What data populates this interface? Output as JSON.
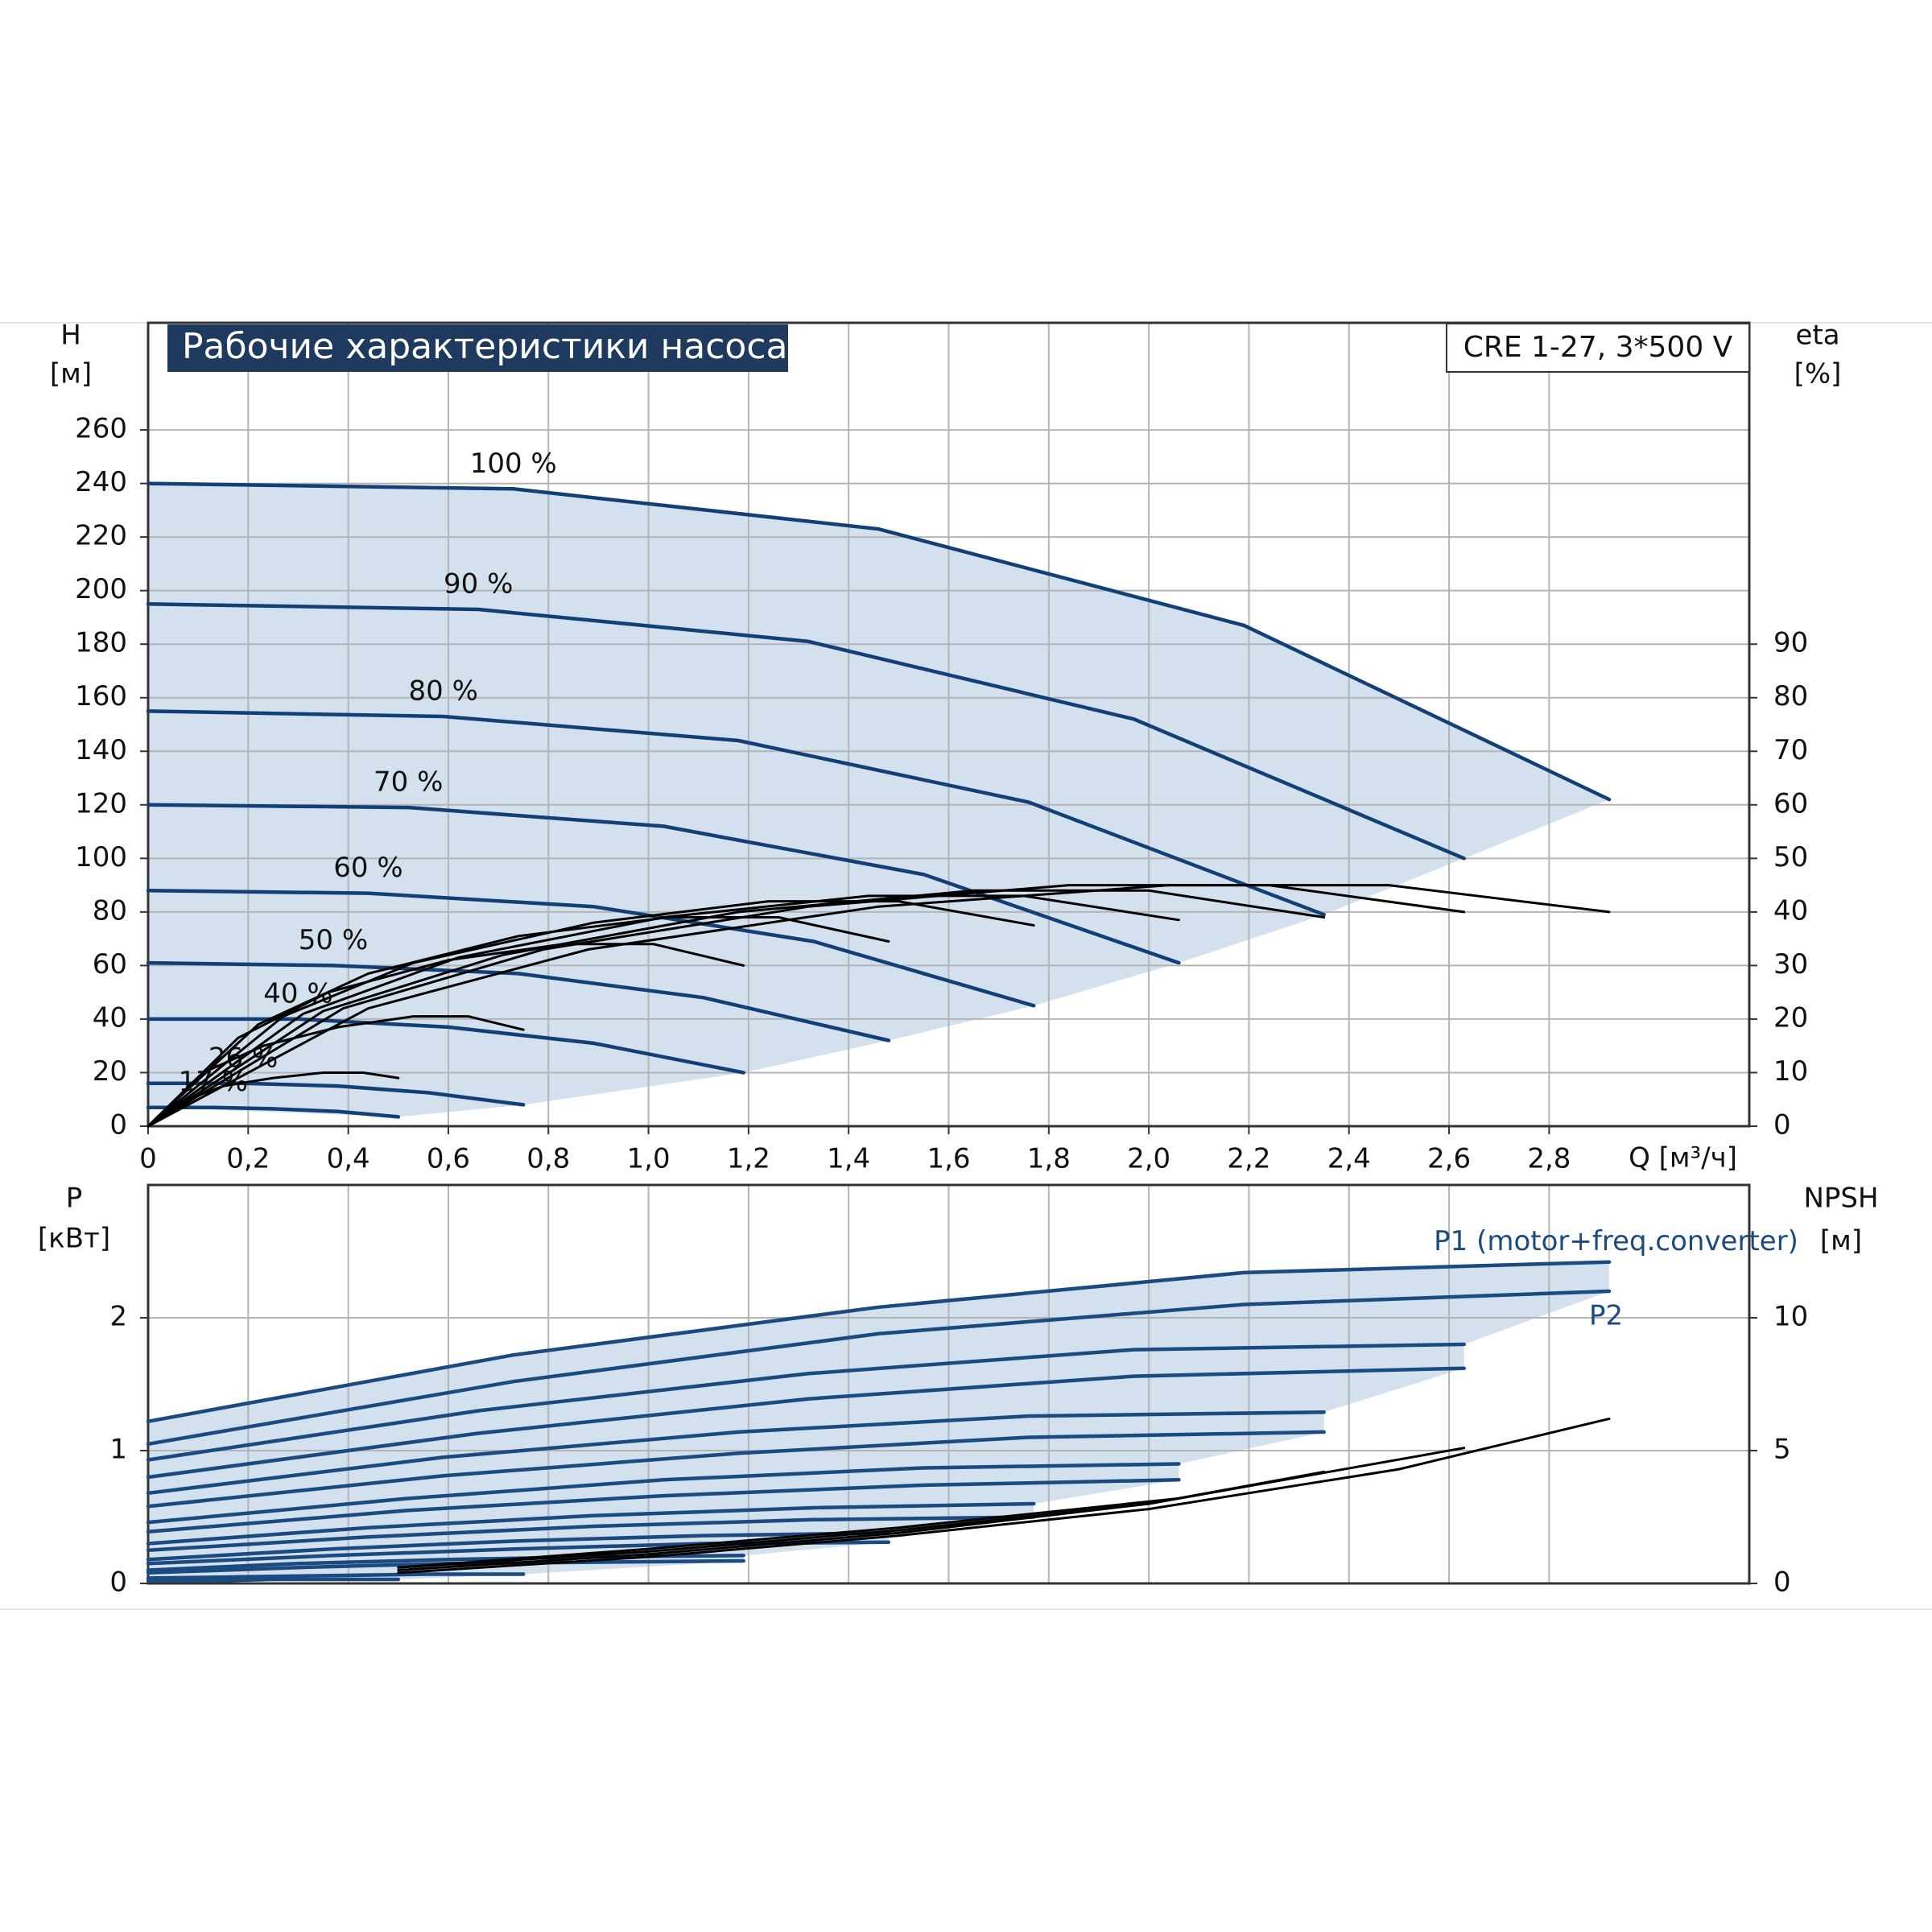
{
  "chart_data": [
    {
      "type": "line",
      "title": "Рабочие характеристики насоса",
      "subtitle": "CRE 1-27, 3*500 V",
      "ylabel": "H",
      "yunit": "[м]",
      "y2label": "eta",
      "y2unit": "[%]",
      "xlabel": "Q [м³/ч]",
      "xlim": [
        0,
        3.2
      ],
      "ylim": [
        0,
        300
      ],
      "y2lim": [
        0,
        150
      ],
      "grid": true,
      "xticks": [
        0,
        {
          "value": 0.2,
          "label": "0,2"
        },
        {
          "value": 0.4,
          "label": "0,4"
        },
        {
          "value": 0.6,
          "label": "0,6"
        },
        {
          "value": 0.8,
          "label": "0,8"
        },
        {
          "value": 1,
          "label": "1,0"
        },
        {
          "value": 1.2,
          "label": "1,2"
        },
        {
          "value": 1.4,
          "label": "1,4"
        },
        {
          "value": 1.6,
          "label": "1,6"
        },
        {
          "value": 1.8,
          "label": "1,8"
        },
        {
          "value": 2,
          "label": "2,0"
        },
        {
          "value": 2.2,
          "label": "2,2"
        },
        {
          "value": 2.4,
          "label": "2,4"
        },
        {
          "value": 2.6,
          "label": "2,6"
        },
        {
          "value": 2.8,
          "label": "2,8"
        }
      ],
      "yticks": [
        0,
        20,
        40,
        60,
        80,
        100,
        120,
        140,
        160,
        180,
        200,
        220,
        240,
        260
      ],
      "y2ticks": [
        0,
        10,
        20,
        30,
        40,
        50,
        60,
        70,
        80,
        90
      ],
      "series": [
        {
          "name": "100 %",
          "color": "#123f75",
          "x": [
            0,
            0.73,
            1.46,
            2.19,
            2.92
          ],
          "values": [
            240,
            238,
            223,
            187,
            122
          ]
        },
        {
          "name": "90 %",
          "color": "#123f75",
          "x": [
            0,
            0.66,
            1.32,
            1.97,
            2.63
          ],
          "values": [
            195,
            193,
            181,
            152,
            100
          ]
        },
        {
          "name": "80 %",
          "color": "#123f75",
          "x": [
            0,
            0.59,
            1.18,
            1.76,
            2.35
          ],
          "values": [
            155,
            153,
            144,
            121,
            79
          ]
        },
        {
          "name": "70 %",
          "color": "#123f75",
          "x": [
            0,
            0.52,
            1.03,
            1.55,
            2.06
          ],
          "values": [
            120,
            119,
            112,
            94,
            61
          ]
        },
        {
          "name": "60 %",
          "color": "#123f75",
          "x": [
            0,
            0.44,
            0.89,
            1.33,
            1.77
          ],
          "values": [
            88,
            87,
            82,
            69,
            45
          ]
        },
        {
          "name": "50 %",
          "color": "#123f75",
          "x": [
            0,
            0.37,
            0.74,
            1.11,
            1.48
          ],
          "values": [
            61,
            60,
            57,
            48,
            32
          ]
        },
        {
          "name": "40 %",
          "color": "#123f75",
          "x": [
            0,
            0.3,
            0.6,
            0.89,
            1.19
          ],
          "values": [
            40,
            40,
            37,
            31,
            20
          ]
        },
        {
          "name": "26 %",
          "color": "#123f75",
          "x": [
            0,
            0.19,
            0.38,
            0.56,
            0.75
          ],
          "values": [
            16,
            16,
            15,
            12.5,
            8
          ]
        },
        {
          "name": "17 %",
          "color": "#123f75",
          "x": [
            0,
            0.13,
            0.25,
            0.38,
            0.5
          ],
          "values": [
            7,
            7,
            6.5,
            5.5,
            3.5
          ]
        },
        {
          "color": "#000000",
          "axis": "y2",
          "x": [
            0,
            0.44,
            0.88,
            1.46,
            2.04,
            2.48,
            2.92
          ],
          "values": [
            0,
            22,
            33,
            41,
            45,
            45,
            40
          ]
        },
        {
          "color": "#000000",
          "axis": "y2",
          "x": [
            0,
            0.39,
            0.79,
            1.32,
            1.84,
            2.24,
            2.63
          ],
          "values": [
            0,
            22,
            33,
            41,
            45,
            45,
            40
          ]
        },
        {
          "color": "#000000",
          "axis": "y2",
          "x": [
            0,
            0.35,
            0.71,
            1.18,
            1.65,
            2.0,
            2.35
          ],
          "values": [
            0,
            21.5,
            32,
            40,
            44,
            44,
            39
          ]
        },
        {
          "color": "#000000",
          "axis": "y2",
          "x": [
            0,
            0.31,
            0.62,
            1.03,
            1.44,
            1.75,
            2.06
          ],
          "values": [
            0,
            21,
            31.5,
            39,
            43,
            43,
            38.5
          ]
        },
        {
          "color": "#000000",
          "axis": "y2",
          "x": [
            0,
            0.27,
            0.53,
            0.89,
            1.24,
            1.5,
            1.77
          ],
          "values": [
            0,
            20.5,
            30.5,
            38,
            42,
            42,
            37.5
          ]
        },
        {
          "color": "#000000",
          "axis": "y2",
          "x": [
            0,
            0.22,
            0.44,
            0.74,
            1.04,
            1.26,
            1.48
          ],
          "values": [
            0,
            19,
            28.5,
            35.5,
            39,
            39,
            34.5
          ]
        },
        {
          "color": "#000000",
          "axis": "y2",
          "x": [
            0,
            0.18,
            0.36,
            0.6,
            0.83,
            1.01,
            1.19
          ],
          "values": [
            0,
            16.5,
            25,
            31,
            34,
            34,
            30
          ]
        },
        {
          "color": "#000000",
          "axis": "y2",
          "x": [
            0,
            0.11,
            0.23,
            0.38,
            0.53,
            0.64,
            0.75
          ],
          "values": [
            0,
            10,
            15,
            18.5,
            20.5,
            20.5,
            18
          ]
        },
        {
          "color": "#000000",
          "axis": "y2",
          "x": [
            0,
            0.08,
            0.15,
            0.25,
            0.35,
            0.43,
            0.5
          ],
          "values": [
            0,
            5,
            7.5,
            9,
            10,
            10,
            9
          ]
        }
      ]
    },
    {
      "type": "line",
      "ylabel": "P",
      "yunit": "[кВт]",
      "y2label": "NPSH",
      "y2unit": "[м]",
      "xlim": [
        0,
        3.2
      ],
      "ylim": [
        0,
        3
      ],
      "y2lim": [
        0,
        15
      ],
      "grid": true,
      "yticks": [
        0,
        1,
        2
      ],
      "y2ticks": [
        0,
        5,
        10
      ],
      "series": [
        {
          "name": "P1 (motor+freq.converter)",
          "color": "#1a4a80",
          "x": [
            0,
            0.73,
            1.46,
            2.19,
            2.92
          ],
          "values": [
            1.22,
            1.72,
            2.08,
            2.34,
            2.42
          ]
        },
        {
          "name": "P2",
          "color": "#1a4a80",
          "x": [
            0,
            0.73,
            1.46,
            2.19,
            2.92
          ],
          "values": [
            1.05,
            1.52,
            1.88,
            2.1,
            2.2
          ]
        },
        {
          "color": "#1a4a80",
          "x": [
            0,
            0.66,
            1.32,
            1.97,
            2.63
          ],
          "values": [
            0.93,
            1.3,
            1.58,
            1.76,
            1.8
          ]
        },
        {
          "color": "#1a4a80",
          "x": [
            0,
            0.66,
            1.32,
            1.97,
            2.63
          ],
          "values": [
            0.8,
            1.13,
            1.39,
            1.56,
            1.62
          ]
        },
        {
          "color": "#1a4a80",
          "x": [
            0,
            0.59,
            1.18,
            1.76,
            2.35
          ],
          "values": [
            0.68,
            0.95,
            1.14,
            1.26,
            1.29
          ]
        },
        {
          "color": "#1a4a80",
          "x": [
            0,
            0.59,
            1.18,
            1.76,
            2.35
          ],
          "values": [
            0.58,
            0.81,
            0.98,
            1.1,
            1.14
          ]
        },
        {
          "color": "#1a4a80",
          "x": [
            0,
            0.52,
            1.03,
            1.55,
            2.06
          ],
          "values": [
            0.46,
            0.64,
            0.78,
            0.87,
            0.9
          ]
        },
        {
          "color": "#1a4a80",
          "x": [
            0,
            0.52,
            1.03,
            1.55,
            2.06
          ],
          "values": [
            0.39,
            0.55,
            0.66,
            0.74,
            0.78
          ]
        },
        {
          "color": "#1a4a80",
          "x": [
            0,
            0.44,
            0.89,
            1.33,
            1.77
          ],
          "values": [
            0.3,
            0.42,
            0.51,
            0.57,
            0.6
          ]
        },
        {
          "color": "#1a4a80",
          "x": [
            0,
            0.44,
            0.89,
            1.33,
            1.77
          ],
          "values": [
            0.25,
            0.35,
            0.43,
            0.48,
            0.5
          ]
        },
        {
          "color": "#1a4a80",
          "x": [
            0,
            0.37,
            0.74,
            1.11,
            1.48
          ],
          "values": [
            0.18,
            0.26,
            0.32,
            0.36,
            0.38
          ]
        },
        {
          "color": "#1a4a80",
          "x": [
            0,
            0.37,
            0.74,
            1.11,
            1.48
          ],
          "values": [
            0.15,
            0.21,
            0.26,
            0.3,
            0.31
          ]
        },
        {
          "color": "#1a4a80",
          "x": [
            0,
            0.3,
            0.6,
            0.89,
            1.19
          ],
          "values": [
            0.1,
            0.15,
            0.18,
            0.2,
            0.21
          ]
        },
        {
          "color": "#1a4a80",
          "x": [
            0,
            0.3,
            0.6,
            0.89,
            1.19
          ],
          "values": [
            0.08,
            0.12,
            0.15,
            0.16,
            0.17
          ]
        },
        {
          "color": "#1a4a80",
          "x": [
            0,
            0.19,
            0.38,
            0.56,
            0.75
          ],
          "values": [
            0.04,
            0.05,
            0.06,
            0.07,
            0.07
          ]
        },
        {
          "color": "#1a4a80",
          "x": [
            0,
            0.13,
            0.25,
            0.38,
            0.5
          ],
          "values": [
            0.02,
            0.02,
            0.03,
            0.03,
            0.03
          ]
        },
        {
          "color": "#000000",
          "axis": "y2",
          "x": [
            0.5,
            1.0,
            1.5,
            2.0,
            2.5,
            2.92
          ],
          "values": [
            0.4,
            1,
            1.8,
            2.8,
            4.3,
            6.2
          ]
        },
        {
          "color": "#000000",
          "axis": "y2",
          "x": [
            0.5,
            1.0,
            1.5,
            2.0,
            2.63
          ],
          "values": [
            0.5,
            1.1,
            1.9,
            3,
            5.1
          ]
        },
        {
          "color": "#000000",
          "axis": "y2",
          "x": [
            0.5,
            1.0,
            1.5,
            2.0,
            2.35
          ],
          "values": [
            0.6,
            1.2,
            2,
            3,
            4.2
          ]
        },
        {
          "color": "#000000",
          "axis": "y2",
          "x": [
            0.5,
            1.0,
            1.5,
            2.06
          ],
          "values": [
            0.6,
            1.3,
            2.1,
            3.2
          ]
        }
      ]
    }
  ]
}
